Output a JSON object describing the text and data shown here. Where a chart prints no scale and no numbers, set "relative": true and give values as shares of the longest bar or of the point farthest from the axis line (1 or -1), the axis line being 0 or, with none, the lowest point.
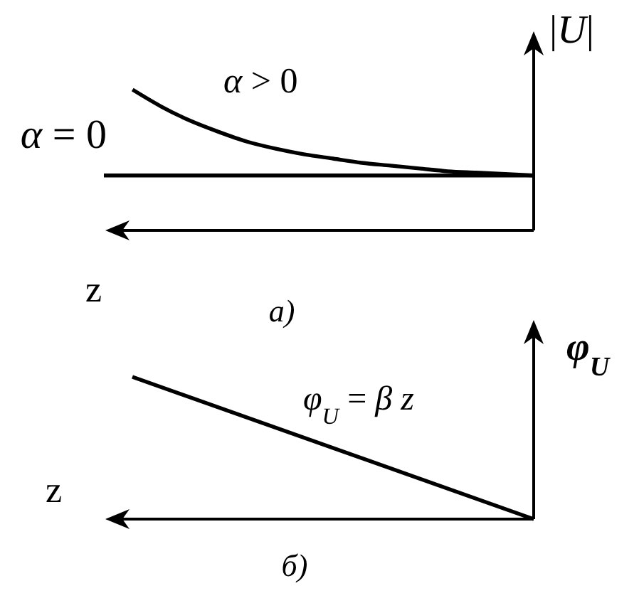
{
  "chart_data": [
    {
      "type": "line",
      "title": "а)",
      "xlabel": "z",
      "ylabel": "|U|",
      "relative": true,
      "categories": [
        null,
        null,
        null,
        null,
        null,
        null,
        null,
        null,
        null,
        null,
        null,
        null,
        null,
        null,
        null,
        null
      ],
      "series": [
        {
          "name": "α = 0",
          "color": "#000000",
          "values": [
            0.39,
            0.39,
            0.39,
            0.39,
            0.39,
            0.39,
            0.39,
            0.39,
            0.39,
            0.39,
            0.39,
            0.39,
            0.39,
            0.39,
            0.39,
            0.39
          ]
        },
        {
          "name": "α > 0",
          "color": "#000000",
          "values": [
            null,
            1,
            0.88,
            0.78,
            0.7,
            0.63,
            0.58,
            0.54,
            0.51,
            0.48,
            0.46,
            0.44,
            0.42,
            0.41,
            0.4,
            0.39
          ]
        }
      ]
    },
    {
      "type": "line",
      "title": "б)",
      "xlabel": "z",
      "ylabel": "φ$_{U}$",
      "relative": true,
      "categories": [
        null,
        null
      ],
      "series": [
        {
          "name": "φ$_{U}$ = β z",
          "color": "#000000",
          "values": [
            1,
            0
          ]
        }
      ]
    }
  ]
}
